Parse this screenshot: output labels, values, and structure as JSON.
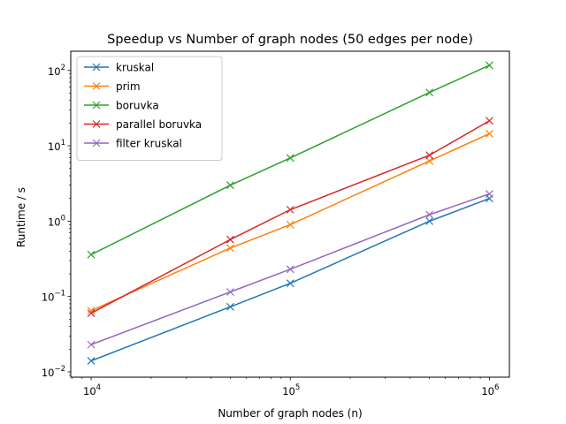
{
  "chart_data": {
    "type": "line",
    "title": "Speedup vs Number of graph nodes (50 edges per node)",
    "xlabel": "Number of graph nodes (n)",
    "ylabel": "Runtime / s",
    "xscale": "log",
    "yscale": "log",
    "xlim": [
      7900,
      1260000
    ],
    "ylim": [
      0.0085,
      180
    ],
    "grid": false,
    "legend_position": "upper left",
    "marker": "x",
    "x": [
      10000,
      50000,
      100000,
      500000,
      1000000
    ],
    "x_ticks": [
      {
        "value": 10000,
        "base": "10",
        "exp": "4"
      },
      {
        "value": 100000,
        "base": "10",
        "exp": "5"
      },
      {
        "value": 1000000,
        "base": "10",
        "exp": "6"
      }
    ],
    "y_ticks": [
      {
        "value": 0.01,
        "base": "10",
        "exp": "−2"
      },
      {
        "value": 0.1,
        "base": "10",
        "exp": "−1"
      },
      {
        "value": 1,
        "base": "10",
        "exp": "0"
      },
      {
        "value": 10,
        "base": "10",
        "exp": "1"
      },
      {
        "value": 100,
        "base": "10",
        "exp": "2"
      }
    ],
    "series": [
      {
        "name": "kruskal",
        "color": "#1f77b4",
        "values": [
          0.014,
          0.073,
          0.15,
          1.0,
          2.0
        ]
      },
      {
        "name": "prim",
        "color": "#ff7f0e",
        "values": [
          0.065,
          0.44,
          0.9,
          6.3,
          14.5
        ]
      },
      {
        "name": "boruvka",
        "color": "#2ca02c",
        "values": [
          0.36,
          3.0,
          6.9,
          51,
          117
        ]
      },
      {
        "name": "parallel boruvka",
        "color": "#d62728",
        "values": [
          0.06,
          0.57,
          1.42,
          7.5,
          21.5
        ]
      },
      {
        "name": "filter kruskal",
        "color": "#9467bd",
        "values": [
          0.023,
          0.115,
          0.23,
          1.22,
          2.3
        ]
      }
    ]
  }
}
